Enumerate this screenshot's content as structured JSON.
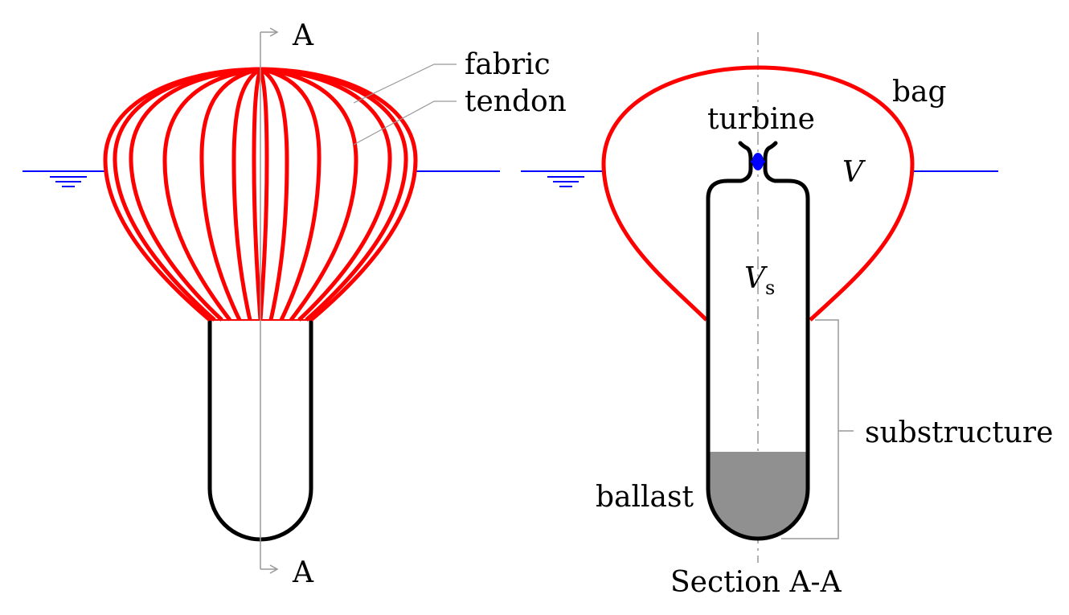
{
  "labels": {
    "section_mark_top": "A",
    "section_mark_bottom": "A",
    "fabric": "fabric",
    "tendon": "tendon",
    "bag": "bag",
    "turbine": "turbine",
    "volume": "V",
    "inner_volume": "V",
    "inner_volume_subscript": "s",
    "ballast": "ballast",
    "substructure": "substructure",
    "section_title": "Section A-A"
  },
  "colors": {
    "bag_tendon": "#ff0000",
    "waterline": "#0000ff",
    "turbine": "#0000ff",
    "structure": "#000000",
    "ballast_fill": "#909090",
    "leader_lines": "#999999",
    "center_line": "#999999"
  }
}
